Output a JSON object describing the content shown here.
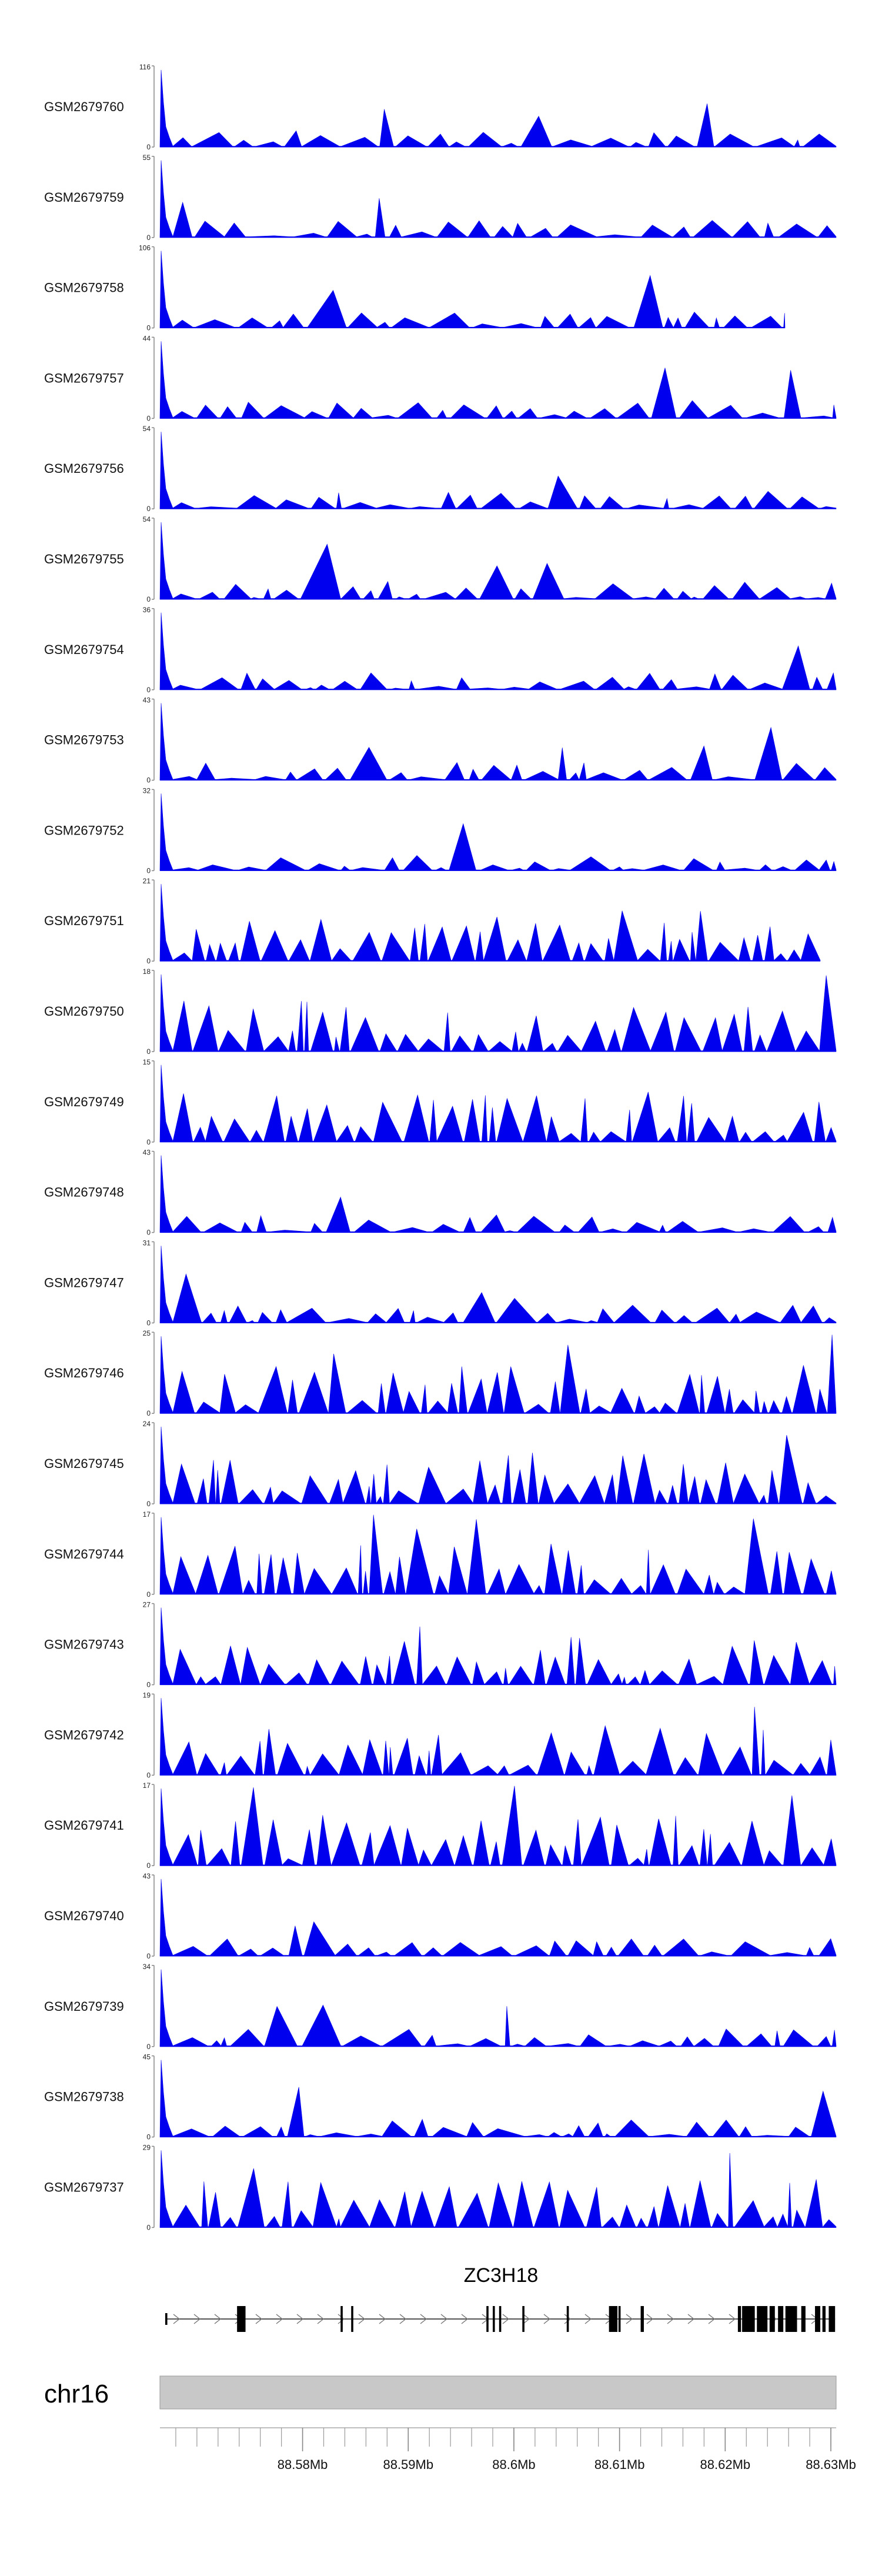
{
  "chart_data": {
    "type": "area",
    "title": "",
    "region": {
      "chromosome": "chr16",
      "start": 88566500,
      "end": 88630500
    },
    "colors": {
      "signal": "#0000ee",
      "axis": "#888888",
      "ideogram": "#c8c8c8",
      "gene": "#000000"
    },
    "tracks": [
      {
        "name": "GSM2679760",
        "ymax": "116",
        "ymin": "0"
      },
      {
        "name": "GSM2679759",
        "ymax": "55",
        "ymin": "0"
      },
      {
        "name": "GSM2679758",
        "ymax": "106",
        "ymin": "0"
      },
      {
        "name": "GSM2679757",
        "ymax": "44",
        "ymin": "0"
      },
      {
        "name": "GSM2679756",
        "ymax": "54",
        "ymin": "0"
      },
      {
        "name": "GSM2679755",
        "ymax": "54",
        "ymin": "0"
      },
      {
        "name": "GSM2679754",
        "ymax": "36",
        "ymin": "0"
      },
      {
        "name": "GSM2679753",
        "ymax": "43",
        "ymin": "0"
      },
      {
        "name": "GSM2679752",
        "ymax": "32",
        "ymin": "0"
      },
      {
        "name": "GSM2679751",
        "ymax": "21",
        "ymin": "0"
      },
      {
        "name": "GSM2679750",
        "ymax": "18",
        "ymin": "0"
      },
      {
        "name": "GSM2679749",
        "ymax": "15",
        "ymin": "0"
      },
      {
        "name": "GSM2679748",
        "ymax": "43",
        "ymin": "0"
      },
      {
        "name": "GSM2679747",
        "ymax": "31",
        "ymin": "0"
      },
      {
        "name": "GSM2679746",
        "ymax": "25",
        "ymin": "0"
      },
      {
        "name": "GSM2679745",
        "ymax": "24",
        "ymin": "0"
      },
      {
        "name": "GSM2679744",
        "ymax": "17",
        "ymin": "0"
      },
      {
        "name": "GSM2679743",
        "ymax": "27",
        "ymin": "0"
      },
      {
        "name": "GSM2679742",
        "ymax": "19",
        "ymin": "0"
      },
      {
        "name": "GSM2679741",
        "ymax": "17",
        "ymin": "0"
      },
      {
        "name": "GSM2679740",
        "ymax": "43",
        "ymin": "0"
      },
      {
        "name": "GSM2679739",
        "ymax": "34",
        "ymin": "0"
      },
      {
        "name": "GSM2679738",
        "ymax": "45",
        "ymin": "0"
      },
      {
        "name": "GSM2679737",
        "ymax": "29",
        "ymin": "0"
      }
    ],
    "gene": {
      "name": "ZC3H18",
      "strand": "+",
      "start": 88567000,
      "end": 88630400,
      "exons": [
        [
          88567000,
          88567200
        ],
        [
          88573800,
          88574600
        ],
        [
          88583600,
          88583800
        ],
        [
          88584600,
          88584800
        ],
        [
          88597400,
          88597600
        ],
        [
          88598000,
          88598200
        ],
        [
          88598600,
          88598800
        ],
        [
          88600800,
          88601000
        ],
        [
          88605000,
          88605200
        ],
        [
          88609000,
          88609800
        ],
        [
          88609900,
          88610100
        ],
        [
          88612000,
          88612300
        ],
        [
          88621200,
          88621500
        ],
        [
          88621600,
          88622800
        ],
        [
          88623000,
          88624000
        ],
        [
          88624200,
          88624700
        ],
        [
          88625000,
          88625500
        ],
        [
          88625700,
          88626800
        ],
        [
          88627200,
          88627600
        ],
        [
          88628500,
          88629000
        ],
        [
          88629200,
          88629500
        ],
        [
          88629800,
          88630400
        ]
      ]
    },
    "genome_axis": {
      "chromosome_label": "chr16",
      "ticks": [
        {
          "value": 88580000,
          "label": "88.58Mb"
        },
        {
          "value": 88590000,
          "label": "88.59Mb"
        },
        {
          "value": 88600000,
          "label": "88.6Mb"
        },
        {
          "value": 88610000,
          "label": "88.61Mb"
        },
        {
          "value": 88620000,
          "label": "88.62Mb"
        },
        {
          "value": 88630000,
          "label": "88.63Mb"
        }
      ],
      "minor_tick_step": 2000
    }
  }
}
